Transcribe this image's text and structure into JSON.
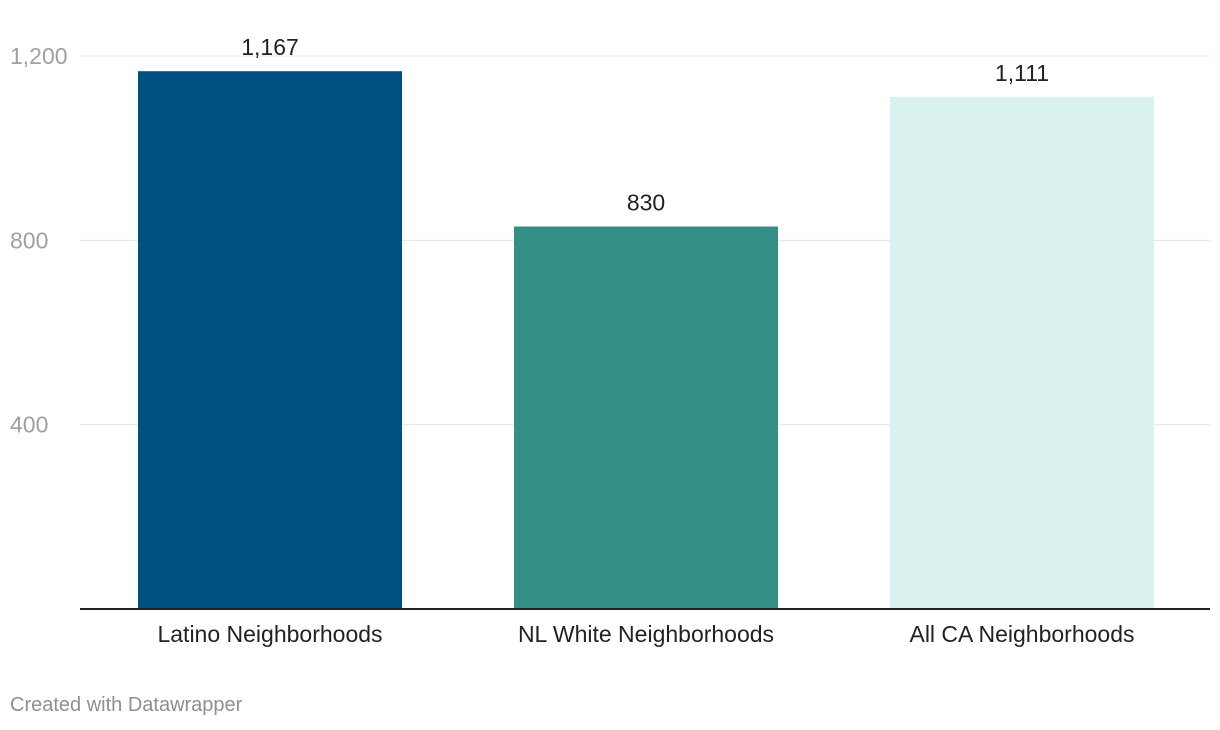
{
  "chart_data": {
    "type": "bar",
    "categories": [
      "Latino Neighborhoods",
      "NL White Neighborhoods",
      "All CA Neighborhoods"
    ],
    "values": [
      1167,
      830,
      1111
    ],
    "value_labels": [
      "1,167",
      "830",
      "1,111"
    ],
    "colors": [
      "#005083",
      "#368f87",
      "#d9f2ef"
    ],
    "ylim": [
      0,
      1200
    ],
    "yticks": [
      400,
      800,
      1200
    ],
    "ytick_labels": [
      "400",
      "800",
      "1,200"
    ],
    "grid": true,
    "title": "",
    "xlabel": "",
    "ylabel": ""
  },
  "footer": {
    "credit": "Created with Datawrapper"
  }
}
